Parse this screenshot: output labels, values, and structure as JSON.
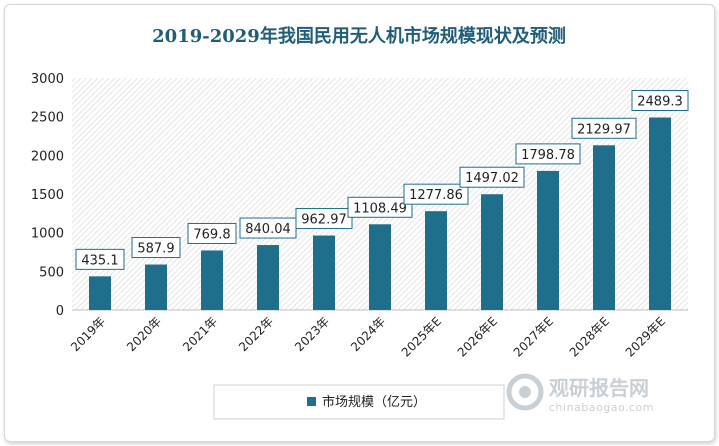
{
  "chart_data": {
    "type": "bar",
    "title": "2019-2029年我国民用无人机市场规模现状及预测",
    "categories": [
      "2019年",
      "2020年",
      "2021年",
      "2022年",
      "2023年",
      "2024年",
      "2025年E",
      "2026年E",
      "2027年E",
      "2028年E",
      "2029年E"
    ],
    "series": [
      {
        "name": "市场规模（亿元）",
        "values": [
          435.1,
          587.9,
          769.8,
          840.04,
          962.97,
          1108.49,
          1277.86,
          1497.02,
          1798.78,
          2129.97,
          2489.3
        ],
        "labels": [
          "435.1",
          "587.9",
          "769.8",
          "840.04",
          "962.97",
          "1108.49",
          "1277.86",
          "1497.02",
          "1798.78",
          "2129.97",
          "2489.3"
        ],
        "color": "#1f6e8c"
      }
    ],
    "ylim": [
      0,
      3000
    ],
    "yticks": [
      0,
      500,
      1000,
      1500,
      2000,
      2500,
      3000
    ],
    "grid": false,
    "legend_position": "bottom"
  },
  "watermark": {
    "text_cn": "观研报告网",
    "text_en": "chinabaogao.com"
  },
  "colors": {
    "bar": "#1f6e8c",
    "title": "#1f5d78",
    "label_border": "#1f6e8c"
  }
}
